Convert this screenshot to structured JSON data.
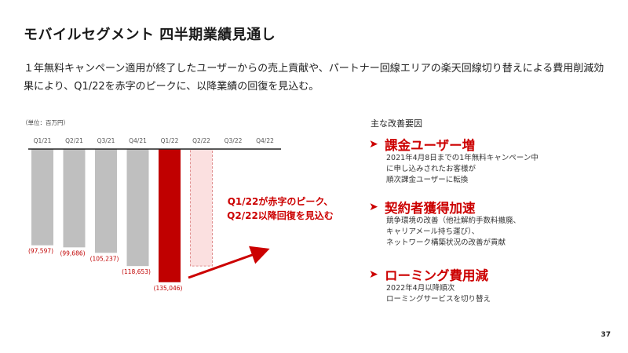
{
  "title": "モバイルセグメント 四半期業績見通し",
  "description": "１年無料キャンペーン適用が終了したユーザーからの売上貢献や、パートナー回線エリアの楽天回線切り替えによる費用削減効果により、Q1/22を赤字のピークに、以降業績の回復を見込む。",
  "unit_label": "（単位：百万円）",
  "chart_data": {
    "type": "bar",
    "title": "",
    "xlabel": "",
    "ylabel": "",
    "categories": [
      "Q1/21",
      "Q2/21",
      "Q3/21",
      "Q4/21",
      "Q1/22",
      "Q2/22",
      "Q3/22",
      "Q4/22"
    ],
    "values": [
      -97597,
      -99686,
      -105237,
      -118653,
      -135046,
      null,
      null,
      null
    ],
    "value_labels": [
      "(97,597)",
      "(99,686)",
      "(105,237)",
      "(118,653)",
      "(135,046)",
      "",
      "",
      ""
    ],
    "bar_styles": [
      "actual",
      "actual",
      "actual",
      "actual",
      "highlight",
      "forecast",
      "none",
      "none"
    ],
    "forecast_bar_value": -118653,
    "ylim": [
      -140000,
      0
    ],
    "grid": false,
    "colors": {
      "actual": "#bfbfbf",
      "highlight": "#c00000",
      "forecast": "#fbe0e0",
      "forecast_border": "#e09090",
      "arrow": "#cc0000"
    }
  },
  "callout": [
    "Q1/22が赤字のピーク、",
    "Q2/22以降回復を見込む"
  ],
  "factors": {
    "heading": "主な改善要因",
    "items": [
      {
        "title": "課金ユーザー増",
        "lines": [
          "2021年4月8日までの1年無料キャンペーン中",
          "に申し込みされたお客様が",
          "順次課金ユーザーに転換"
        ]
      },
      {
        "title": "契約者獲得加速",
        "lines": [
          "競争環境の改善（他社解約手数料撤廃、",
          "キャリアメール持ち運び）、",
          "ネットワーク構築状況の改善が貢献"
        ]
      },
      {
        "title": "ローミング費用減",
        "lines": [
          "2022年4月以降順次",
          "ローミングサービスを切り替え"
        ]
      }
    ]
  },
  "page_number": "37"
}
